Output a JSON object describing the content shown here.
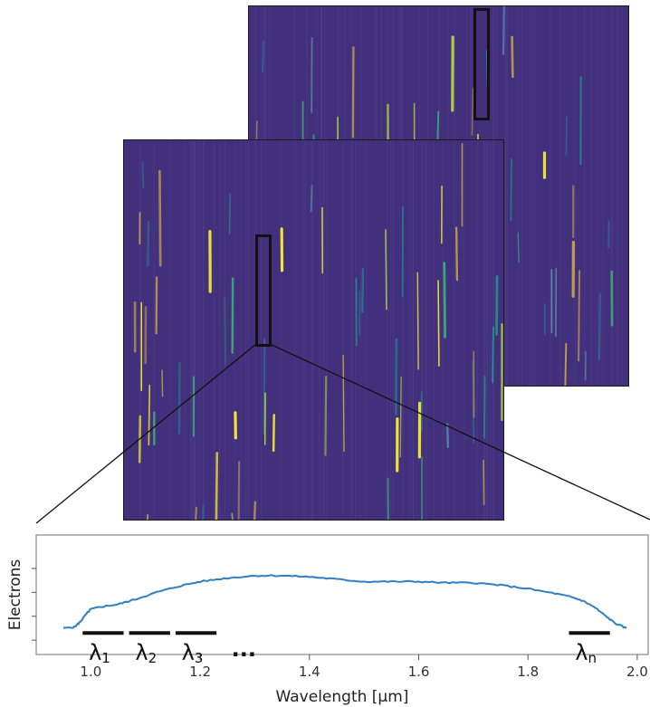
{
  "detector_images": [
    {
      "name": "back-detector-frame"
    },
    {
      "name": "front-detector-frame"
    }
  ],
  "chart_data": {
    "type": "line",
    "title": "",
    "xlabel": "Wavelength [μm]",
    "ylabel": "Electrons",
    "xlim": [
      0.9,
      2.02
    ],
    "ylim": [
      0.0,
      1.0
    ],
    "x_ticks": [
      "1.0",
      "1.2",
      "1.4",
      "1.6",
      "1.8",
      "2.0"
    ],
    "x_tick_values": [
      1.0,
      1.2,
      1.4,
      1.6,
      1.8,
      2.0
    ],
    "y_tick_values": [
      0.12,
      0.32,
      0.52,
      0.72
    ],
    "series": [
      {
        "color": "#2f7fc1",
        "x": [
          0.95,
          0.97,
          0.98,
          0.99,
          1.0,
          1.02,
          1.05,
          1.08,
          1.12,
          1.16,
          1.2,
          1.25,
          1.3,
          1.35,
          1.4,
          1.45,
          1.5,
          1.55,
          1.6,
          1.65,
          1.7,
          1.75,
          1.8,
          1.85,
          1.88,
          1.9,
          1.92,
          1.94,
          1.96,
          1.98
        ],
        "y": [
          0.22,
          0.23,
          0.27,
          0.33,
          0.38,
          0.4,
          0.42,
          0.46,
          0.52,
          0.57,
          0.61,
          0.64,
          0.66,
          0.66,
          0.65,
          0.63,
          0.61,
          0.61,
          0.61,
          0.6,
          0.6,
          0.58,
          0.55,
          0.51,
          0.48,
          0.45,
          0.4,
          0.33,
          0.26,
          0.22
        ]
      }
    ],
    "bands": [
      {
        "label": "λ",
        "sub": "1",
        "x0": 0.985,
        "x1": 1.06
      },
      {
        "label": "λ",
        "sub": "2",
        "x0": 1.07,
        "x1": 1.145
      },
      {
        "label": "λ",
        "sub": "3",
        "x0": 1.155,
        "x1": 1.23
      },
      {
        "label": "λ",
        "sub": "n",
        "x0": 1.875,
        "x1": 1.95
      }
    ],
    "band_y": 0.18,
    "ellipsis": "..."
  }
}
